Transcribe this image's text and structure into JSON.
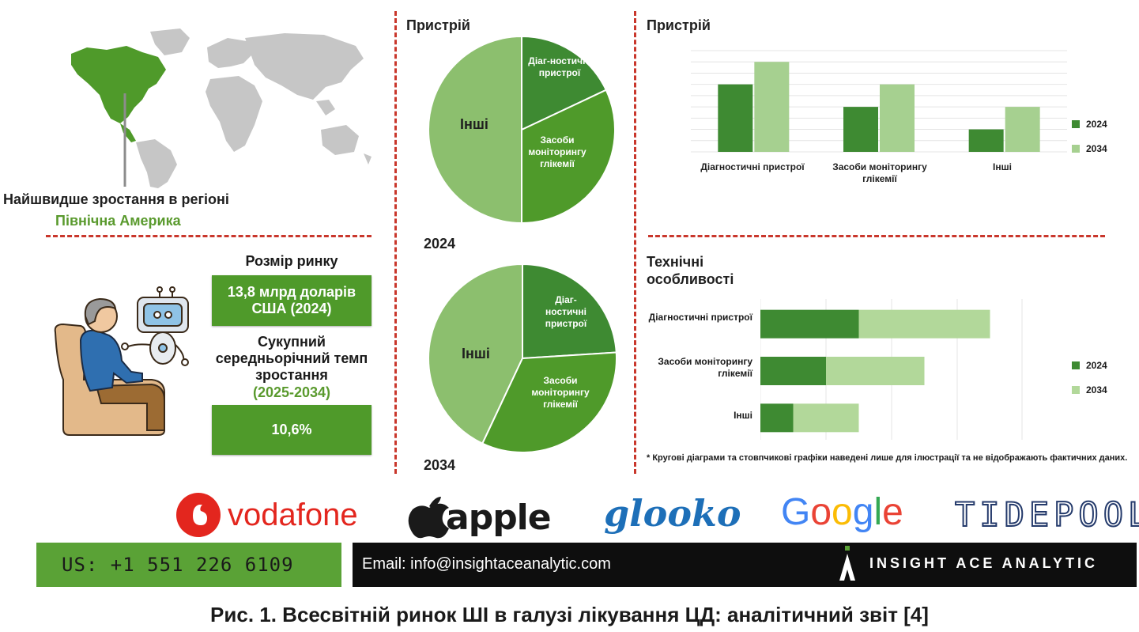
{
  "region": {
    "heading": "Найшвидше зростання в регіоні",
    "name": "Північна Америка"
  },
  "market": {
    "size_title": "Розмір ринку",
    "size_value": "13,8 млрд доларів США (2024)",
    "cagr_title": "Сукупний середньорічний темп зростання",
    "cagr_period": "(2025-2034)",
    "cagr_value": "10,6%"
  },
  "pies": {
    "title": "Пристрій",
    "year_top": "2024",
    "year_bottom": "2034",
    "label_diag": "Діаг-ностичні пристрої",
    "label_monitor": "Засоби моніторингу глікемії",
    "label_other": "Інші"
  },
  "bar_chart_section": {
    "title": "Пристрій"
  },
  "hbar_chart_section": {
    "title": "Технічні особливості"
  },
  "chart_data": [
    {
      "type": "pie",
      "title": "2024",
      "labels": [
        "Інші",
        "Діаг-ностичні пристрої",
        "Засоби моніторингу глікемії"
      ],
      "values": [
        50,
        18,
        32
      ],
      "colors": [
        "#8cbf6e",
        "#3e8a32",
        "#4f9a2a"
      ]
    },
    {
      "type": "pie",
      "title": "2034",
      "labels": [
        "Інші",
        "Діаг-ностичні пристрої",
        "Засоби моніторингу глікемії"
      ],
      "values": [
        43,
        24,
        33
      ],
      "colors": [
        "#8cbf6e",
        "#3e8a32",
        "#4f9a2a"
      ]
    },
    {
      "type": "bar",
      "categories": [
        "Діагностичні пристрої",
        "Засоби моніторингу глікемії",
        "Інші"
      ],
      "series": [
        {
          "name": "2024",
          "values": [
            3,
            2,
            1
          ],
          "color": "#3e8a32"
        },
        {
          "name": "2034",
          "values": [
            4,
            3,
            2
          ],
          "color": "#a6d090"
        }
      ],
      "ylim": [
        0,
        4.5
      ],
      "grid": true,
      "legend": "right"
    },
    {
      "type": "bar",
      "orientation": "horizontal",
      "stacked": true,
      "categories": [
        "Діагностичні пристрої",
        "Засоби моніторингу глікемії",
        "Інші"
      ],
      "series": [
        {
          "name": "2024",
          "values": [
            1.5,
            1.0,
            0.5
          ],
          "color": "#3e8a32"
        },
        {
          "name": "2034",
          "values": [
            2.0,
            1.5,
            1.0
          ],
          "color": "#b2d89a"
        }
      ],
      "xlim": [
        0,
        4
      ],
      "grid": true,
      "legend": "right"
    }
  ],
  "note": "* Кругові діаграми та стовпчикові графіки наведені лише для ілюстрації та не відображають фактичних даних.",
  "logos": {
    "vodafone": "vodafone",
    "apple": "apple",
    "glooko": "glooko",
    "google": "Google",
    "tidepool": "TIDEPOOL"
  },
  "footer": {
    "phone": "US: +1 551 226 6109",
    "email": "Email: info@insightaceanalytic.com",
    "brand": "INSIGHT ACE ANALYTIC"
  },
  "caption": "Рис. 1. Всесвітній ринок ШІ в галузі лікування ЦД: аналітичний звіт [4]",
  "colors": {
    "dark_green": "#3e8a32",
    "mid_green": "#4f9a2a",
    "light_green": "#8cbf6e",
    "pale_green": "#a6d090",
    "red_dash": "#c9372c"
  }
}
